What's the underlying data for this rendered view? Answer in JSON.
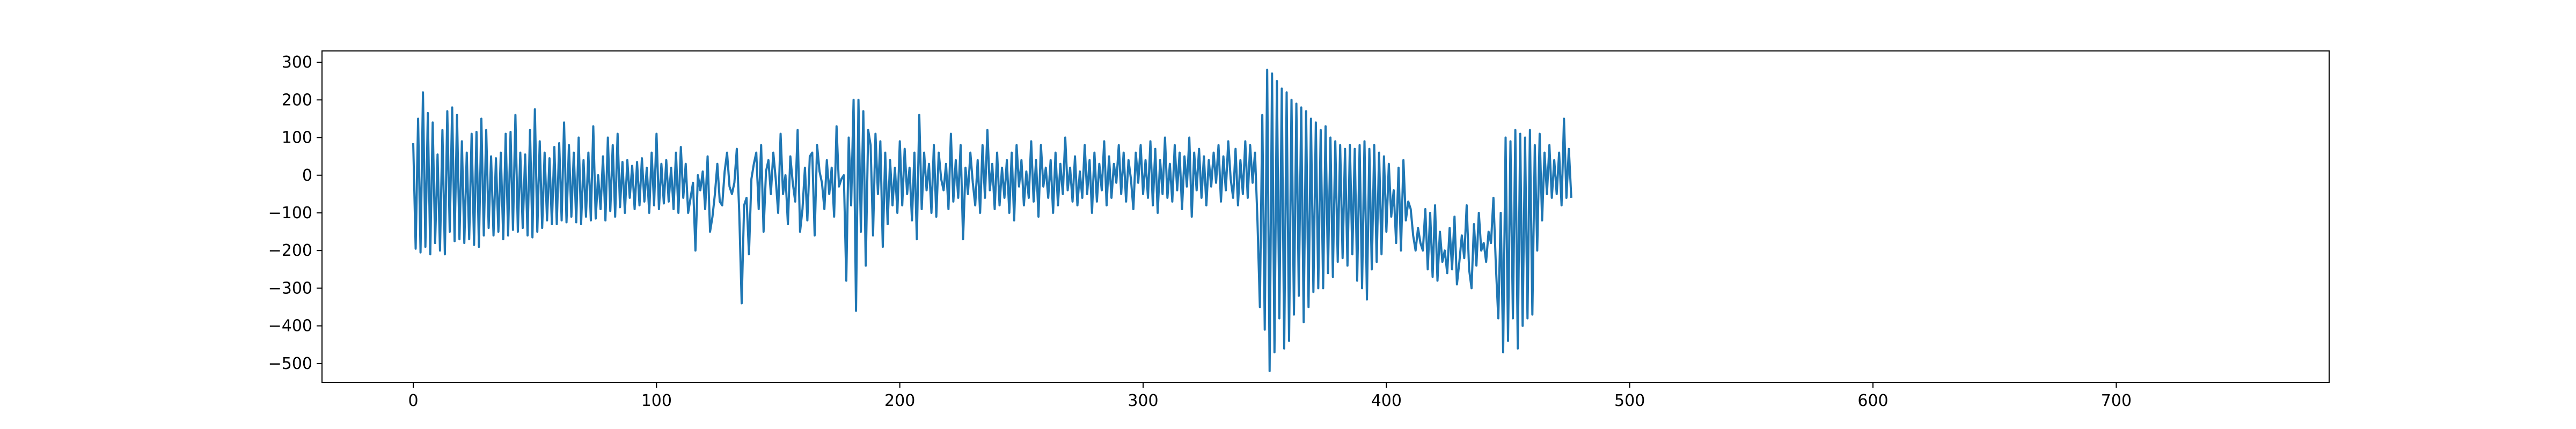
{
  "chart_data": {
    "type": "line",
    "title": "",
    "xlabel": "",
    "ylabel": "",
    "xlim": [
      -37.5,
      787.5
    ],
    "ylim": [
      -550,
      330
    ],
    "x_ticks": [
      0,
      100,
      200,
      300,
      400,
      500,
      600,
      700
    ],
    "y_ticks": [
      300,
      200,
      100,
      0,
      -100,
      -200,
      -300,
      -400,
      -500
    ],
    "x_tick_labels": [
      "0",
      "100",
      "200",
      "300",
      "400",
      "500",
      "600",
      "700"
    ],
    "y_tick_labels": [
      "300",
      "200",
      "100",
      "0",
      "−100",
      "−200",
      "−300",
      "−400",
      "−500"
    ],
    "grid": false,
    "line_color": "#1f77b4",
    "series": [
      {
        "x_start": 0,
        "x_step": 1,
        "values": [
          85,
          -195,
          150,
          -205,
          220,
          -190,
          165,
          -210,
          140,
          -180,
          55,
          -200,
          120,
          -210,
          170,
          -150,
          180,
          -175,
          160,
          -170,
          90,
          -180,
          60,
          -170,
          110,
          -185,
          115,
          -190,
          150,
          -160,
          120,
          -140,
          50,
          -160,
          45,
          -150,
          60,
          -170,
          110,
          -160,
          115,
          -145,
          160,
          -150,
          60,
          -140,
          55,
          -160,
          120,
          -165,
          175,
          -150,
          90,
          -140,
          60,
          -120,
          45,
          -130,
          75,
          -130,
          85,
          -120,
          140,
          -125,
          80,
          -110,
          60,
          -125,
          100,
          -130,
          40,
          -110,
          60,
          -120,
          130,
          -115,
          0,
          -90,
          50,
          -120,
          100,
          -95,
          80,
          -110,
          110,
          -85,
          35,
          -100,
          40,
          -60,
          25,
          -90,
          35,
          -80,
          45,
          -70,
          20,
          -100,
          60,
          -80,
          110,
          -90,
          30,
          -75,
          40,
          -70,
          20,
          -90,
          60,
          -100,
          75,
          -60,
          30,
          -100,
          -60,
          -20,
          -200,
          0,
          -40,
          10,
          -90,
          50,
          -150,
          -110,
          -50,
          30,
          -70,
          -80,
          10,
          60,
          -30,
          -50,
          -20,
          70,
          -100,
          -340,
          -80,
          -60,
          -210,
          -10,
          30,
          60,
          -90,
          80,
          -150,
          10,
          40,
          -50,
          60,
          -10,
          -100,
          110,
          -50,
          0,
          -130,
          50,
          -20,
          -70,
          120,
          -150,
          -90,
          20,
          -120,
          50,
          60,
          -160,
          80,
          10,
          -20,
          -90,
          40,
          -50,
          20,
          -110,
          130,
          -30,
          -10,
          0,
          -280,
          100,
          -80,
          200,
          -360,
          200,
          -150,
          170,
          -240,
          120,
          80,
          -160,
          110,
          -50,
          90,
          -190,
          60,
          -130,
          40,
          -80,
          20,
          -100,
          90,
          -80,
          70,
          -50,
          20,
          -120,
          60,
          -170,
          160,
          -90,
          60,
          -40,
          30,
          -100,
          80,
          -110,
          60,
          -10,
          -40,
          30,
          -90,
          110,
          -70,
          40,
          -60,
          80,
          -170,
          20,
          -50,
          60,
          -20,
          -80,
          40,
          -100,
          80,
          -60,
          120,
          -40,
          30,
          -90,
          60,
          -80,
          20,
          -60,
          40,
          -100,
          60,
          -120,
          80,
          -30,
          40,
          -80,
          10,
          -60,
          90,
          -70,
          40,
          -110,
          80,
          -30,
          20,
          -60,
          40,
          -100,
          60,
          -80,
          30,
          -50,
          100,
          -40,
          20,
          -70,
          50,
          -80,
          10,
          -60,
          80,
          -50,
          40,
          -100,
          60,
          -70,
          30,
          -40,
          90,
          -80,
          50,
          -60,
          30,
          -20,
          80,
          -50,
          60,
          -70,
          40,
          -10,
          -90,
          60,
          -20,
          80,
          -50,
          40,
          -60,
          90,
          -80,
          70,
          -100,
          40,
          -50,
          100,
          -60,
          30,
          -70,
          80,
          -40,
          60,
          -90,
          50,
          -30,
          100,
          -110,
          60,
          -40,
          70,
          -60,
          50,
          -80,
          40,
          -30,
          60,
          -20,
          80,
          -70,
          50,
          -40,
          90,
          -10,
          -60,
          70,
          -80,
          40,
          -50,
          90,
          -60,
          80,
          -20,
          60,
          -120,
          -350,
          160,
          -410,
          280,
          -520,
          270,
          -470,
          250,
          -380,
          230,
          -460,
          220,
          -440,
          200,
          -370,
          190,
          -320,
          180,
          -390,
          170,
          -350,
          150,
          -310,
          140,
          -300,
          120,
          -300,
          130,
          -260,
          100,
          -270,
          90,
          -230,
          80,
          -220,
          70,
          -240,
          80,
          -210,
          70,
          -280,
          80,
          -300,
          90,
          -330,
          70,
          -250,
          80,
          -230,
          60,
          -210,
          50,
          -150,
          30,
          -110,
          -40,
          -180,
          20,
          -200,
          40,
          -120,
          -70,
          -90,
          -160,
          -200,
          -140,
          -180,
          -200,
          -90,
          -250,
          -100,
          -270,
          -80,
          -280,
          -150,
          -230,
          -200,
          -260,
          -140,
          -250,
          -110,
          -290,
          -230,
          -160,
          -220,
          -80,
          -250,
          -300,
          -130,
          -240,
          -100,
          -200,
          -180,
          -230,
          -150,
          -180,
          -60,
          -240,
          -380,
          -100,
          -470,
          100,
          -440,
          90,
          -380,
          120,
          -460,
          110,
          -400,
          100,
          -380,
          120,
          -370,
          80,
          -200,
          110,
          -120,
          60,
          -50,
          80,
          -60,
          40,
          -50,
          60,
          -80,
          150,
          -60,
          70,
          -60
        ]
      }
    ]
  }
}
